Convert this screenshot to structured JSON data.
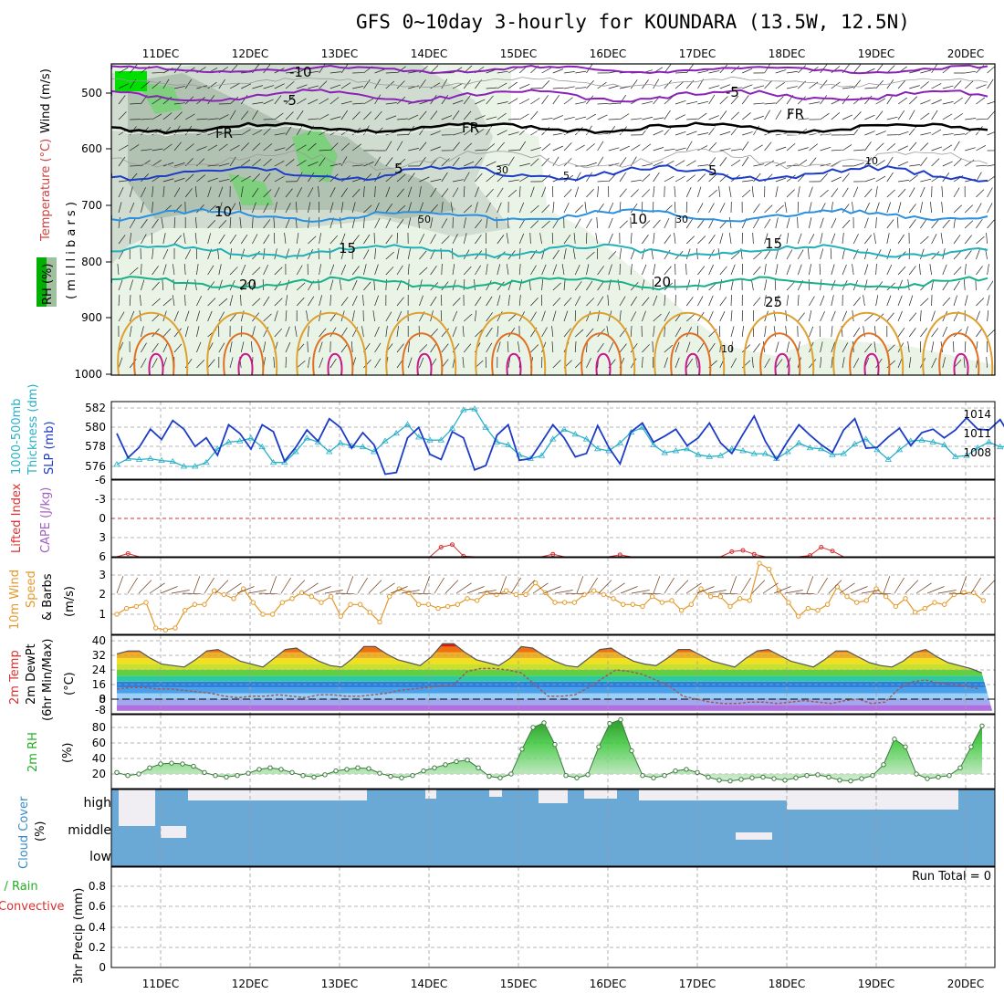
{
  "title": "GFS 0~10day 3-hourly for KOUNDARA (13.5W, 12.5N)",
  "dates": [
    "11DEC",
    "12DEC",
    "13DEC",
    "14DEC",
    "15DEC",
    "16DEC",
    "17DEC",
    "18DEC",
    "19DEC",
    "20DEC"
  ],
  "colors": {
    "grid": "#9e9e9e",
    "frame": "#000000",
    "cloud": "#6aa8d6",
    "rh": "#22b022",
    "thick": "#2ab0c8",
    "slp": "#1c3cc8",
    "wind": "#e39a2a",
    "li": "#d83030",
    "purple": "#8a22b8",
    "orange": "#e0a030"
  },
  "panels": {
    "upper": {
      "label_rh": "RH (%)",
      "label_temp": "Temperature (°C)",
      "label_wind": "Wind (m/s)",
      "label_mb": "( m i l l i b a r s )",
      "yticks": [
        "500",
        "600",
        "700",
        "800",
        "900",
        "1000"
      ],
      "contour_labels": [
        "-10",
        "-5",
        "-5",
        "FR",
        "FR",
        "FR",
        "5",
        "5",
        "10",
        "10",
        "15",
        "15",
        "20",
        "20",
        "25",
        "30",
        "30",
        "50",
        "10",
        "10",
        "5"
      ]
    },
    "thick": {
      "label1": "1000-500mb",
      "label2": "Thickness (dm)",
      "label3": "SLP (mb)",
      "left_ticks": [
        "582",
        "580",
        "578",
        "576"
      ],
      "right_ticks": [
        "1014",
        "1011",
        "1008"
      ]
    },
    "cape": {
      "label1": "Lifted Index",
      "label2": "CAPE (J/kg)",
      "ticks": [
        "-6",
        "-3",
        "0",
        "3",
        "6"
      ]
    },
    "wind10": {
      "label1": "10m Wind",
      "label2": "Speed",
      "label3": "& Barbs",
      "label4": "(m/s)",
      "ticks": [
        "3",
        "2",
        "1"
      ]
    },
    "temp": {
      "label1": "2m Temp",
      "label2": "2m DewPt",
      "label3": "(6hr Min/Max)",
      "label4": "(°C)",
      "ticks": [
        "40",
        "32",
        "24",
        "16",
        "8",
        "0",
        "-8"
      ]
    },
    "rh": {
      "label1": "2m RH",
      "label2": "(%)",
      "ticks": [
        "80",
        "60",
        "40",
        "20"
      ]
    },
    "cloud": {
      "label1": "Cloud Cover",
      "label2": "(%)",
      "ticks": [
        "high",
        "middle",
        "low"
      ]
    },
    "precip": {
      "label1": "Total / Rain",
      "label2": "Convective",
      "label3": "3hr Precip (mm)",
      "ticks": [
        "0.8",
        "0.6",
        "0.4",
        "0.2",
        "0"
      ],
      "run_total": "Run Total = 0"
    }
  },
  "chart_data": [
    {
      "type": "line",
      "title": "1000-500mb Thickness (dm) / SLP (mb)",
      "series": [
        {
          "name": "SLP (mb)",
          "values": [
            1011.8,
            1009,
            1010.2,
            1012.3,
            1011.1,
            1013.3,
            1012.3,
            1010.3,
            1011.3,
            1009.3,
            1012.8,
            1011.8,
            1010.0,
            1012.8,
            1012.0,
            1008.6,
            1010.2,
            1012.2,
            1010.9,
            1013.5,
            1012.5,
            1010.1,
            1011.9,
            1010.5,
            1007.1,
            1007.3,
            1011.3,
            1012.5,
            1009.4,
            1008.8,
            1012.0,
            1011.3,
            1007.6,
            1008.1,
            1011.6,
            1012.8,
            1008.7,
            1008.9,
            1010.8,
            1012.8,
            1011.3,
            1009.1,
            1009.5,
            1012.7,
            1010.2,
            1008.3,
            1012.0,
            1013.0,
            1010.8,
            1011.5,
            1012.3,
            1010.4,
            1011.3,
            1013.0,
            1010.7,
            1009.5,
            1011.7,
            1013.8,
            1010.9,
            1008.8,
            1010.9,
            1012.8,
            1011.6,
            1010.5,
            1009.6,
            1012.2,
            1013.5,
            1010.1,
            1010.2,
            1011.4,
            1012.4,
            1010.4,
            1011.9,
            1012.3,
            1011.3,
            1012.2,
            1013.6,
            1012.3,
            1012.2,
            1013.4,
            1011.3,
            1009.4,
            1010.5,
            1012.3,
            1012.7
          ]
        },
        {
          "name": "Thickness (dm)",
          "values": [
            576.2,
            576.8,
            576.7,
            576.8,
            576.6,
            576.5,
            576.0,
            576.0,
            576.4,
            577.8,
            578.5,
            578.6,
            578.9,
            578.0,
            576.4,
            576.4,
            577.5,
            578.9,
            578.5,
            577.5,
            578.4,
            578.1,
            578.0,
            577.5,
            578.6,
            579.4,
            580.3,
            579.0,
            578.7,
            578.7,
            579.9,
            581.8,
            581.9,
            580.0,
            578.5,
            578.2,
            577.2,
            576.8,
            577.1,
            578.8,
            579.8,
            579.3,
            578.8,
            577.8,
            577.6,
            578.4,
            579.5,
            580.0,
            578.2,
            577.4,
            577.6,
            577.8,
            577.2,
            577.0,
            577.1,
            577.8,
            577.6,
            577.3,
            577.3,
            576.8,
            577.5,
            578.4,
            577.9,
            577.8,
            577.2,
            577.3,
            578.3,
            578.8,
            577.7,
            576.7,
            577.7,
            578.6,
            578.7,
            578.5,
            578.2,
            577.0,
            577.1,
            577.9,
            578.5,
            578.0,
            578.1,
            577.5,
            576.2,
            575.9,
            575.4
          ]
        }
      ]
    },
    {
      "type": "line",
      "title": "Lifted Index / CAPE",
      "series": [
        {
          "name": "Lifted Index",
          "values": [
            6.0,
            5.5,
            6.0,
            6.0,
            6.0,
            6.0,
            6.0,
            6.0,
            6.0,
            6.0,
            6.0,
            6.0,
            6.0,
            6.0,
            6.0,
            6.0,
            6.0,
            6.0,
            6.0,
            6.0,
            6.0,
            6.0,
            6.0,
            6.0,
            6.0,
            6.0,
            6.0,
            6.0,
            6.0,
            4.5,
            4.1,
            5.9,
            6.0,
            6.0,
            6.0,
            6.0,
            6.0,
            6.0,
            6.0,
            5.6,
            6.0,
            6.0,
            6.0,
            6.0,
            6.0,
            5.7,
            6.0,
            6.0,
            6.0,
            6.0,
            6.0,
            6.0,
            6.0,
            6.0,
            6.0,
            5.2,
            5.0,
            5.6,
            6.0,
            6.0,
            6.0,
            6.0,
            5.8,
            4.5,
            5.1,
            6.0,
            6.0,
            6.0,
            6.0,
            6.0,
            6.0,
            6.0,
            6.0,
            6.0,
            6.0,
            6.0,
            6.0,
            6.0,
            6.0,
            6.0,
            6.0,
            6.0,
            6.0,
            6.0,
            6.0
          ]
        }
      ]
    },
    {
      "type": "line",
      "title": "10m Wind Speed",
      "series": [
        {
          "name": "Speed (m/s)",
          "values": [
            1.0,
            1.3,
            1.4,
            1.6,
            0.3,
            0.2,
            0.3,
            1.2,
            1.5,
            1.5,
            2.2,
            2.0,
            1.8,
            2.3,
            1.6,
            1.0,
            1.0,
            1.6,
            1.8,
            2.1,
            1.9,
            1.6,
            1.9,
            0.9,
            1.5,
            1.5,
            1.1,
            0.6,
            1.9,
            2.3,
            2.1,
            1.5,
            1.5,
            1.3,
            1.4,
            1.5,
            1.8,
            1.7,
            2.1,
            2.0,
            2.2,
            2.0,
            2.0,
            2.6,
            2.1,
            1.6,
            1.6,
            1.6,
            2.0,
            2.2,
            2.0,
            1.8,
            1.5,
            1.5,
            1.4,
            1.9,
            1.6,
            1.7,
            1.2,
            1.5,
            2.3,
            1.9,
            1.9,
            1.4,
            1.8,
            1.7,
            3.6,
            3.3,
            2.2,
            1.6,
            0.9,
            1.3,
            1.2,
            1.5,
            2.4,
            1.9,
            1.6,
            1.7,
            2.3,
            1.9,
            1.4,
            1.8,
            1.1,
            1.3,
            1.6,
            1.5,
            2.0,
            2.1,
            2.1,
            1.7
          ]
        }
      ]
    },
    {
      "type": "area",
      "title": "2m Temp / 2m DewPt",
      "series": [
        {
          "name": "2m Temp",
          "values": [
            31,
            33,
            33,
            28,
            24,
            23,
            22,
            27,
            33,
            34,
            30,
            26,
            24,
            22,
            28,
            34,
            35,
            30,
            26,
            23,
            22,
            28,
            36,
            36,
            31,
            27,
            25,
            23,
            29,
            38,
            38,
            32,
            27,
            25,
            23,
            28,
            36,
            35,
            30,
            26,
            23,
            22,
            28,
            34,
            35,
            30,
            26,
            24,
            23,
            28,
            34,
            34,
            30,
            26,
            24,
            22,
            28,
            33,
            34,
            30,
            26,
            24,
            22,
            27,
            33,
            33,
            29,
            25,
            23,
            22,
            26,
            32,
            34,
            29,
            25,
            23,
            21,
            18
          ]
        },
        {
          "name": "2m DewPt",
          "values": [
            7,
            8,
            8,
            7,
            7,
            6,
            5,
            4,
            2,
            1,
            2,
            2,
            3,
            2,
            1,
            3,
            3,
            2,
            2,
            3,
            4,
            6,
            7,
            8,
            9,
            10,
            19,
            21,
            21,
            20,
            18,
            10,
            2,
            2,
            3,
            8,
            14,
            20,
            19,
            17,
            13,
            9,
            2,
            0,
            -2,
            -3,
            -3,
            -2,
            -2,
            -3,
            -2,
            -1,
            -2,
            -3,
            -1,
            0,
            -3,
            -2,
            7,
            12,
            13,
            11,
            10,
            9,
            7
          ]
        }
      ]
    },
    {
      "type": "area",
      "title": "2m RH",
      "series": [
        {
          "name": "2m RH (%)",
          "values": [
            22,
            18,
            20,
            28,
            33,
            34,
            33,
            30,
            22,
            18,
            16,
            18,
            21,
            26,
            28,
            26,
            22,
            18,
            16,
            19,
            24,
            26,
            28,
            27,
            21,
            17,
            15,
            18,
            24,
            28,
            32,
            36,
            38,
            28,
            17,
            15,
            20,
            52,
            80,
            86,
            58,
            18,
            15,
            19,
            55,
            85,
            90,
            50,
            18,
            15,
            18,
            24,
            26,
            22,
            16,
            12,
            11,
            13,
            15,
            16,
            14,
            12,
            15,
            18,
            19,
            16,
            12,
            11,
            14,
            18,
            32,
            65,
            55,
            20,
            14,
            16,
            18,
            28,
            55,
            82
          ]
        }
      ]
    }
  ]
}
